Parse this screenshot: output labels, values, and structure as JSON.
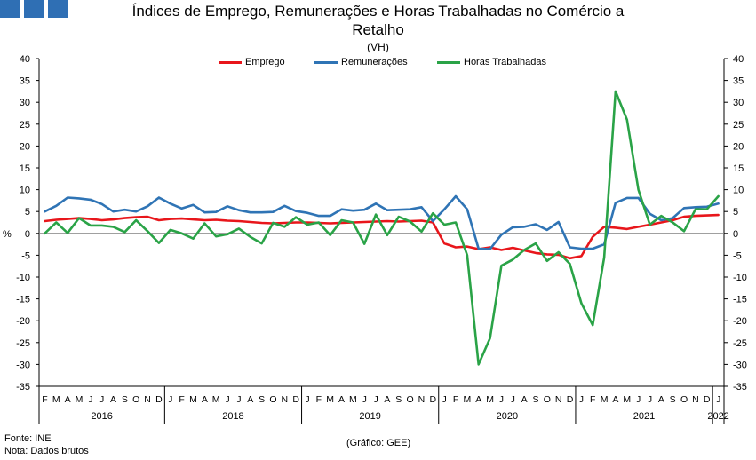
{
  "header": {
    "title_line1": "Índices de Emprego, Remunerações e Horas Trabalhadas no Comércio a",
    "title_line2": "Retalho",
    "subtitle": "(VH)"
  },
  "footer": {
    "source": "Fonte: INE",
    "note": "Nota: Dados brutos",
    "credit": "(Gráfico: GEE)"
  },
  "chart_data": {
    "type": "line",
    "ylabel": "%",
    "ylim": [
      -35,
      40
    ],
    "yticks": [
      40,
      35,
      30,
      25,
      20,
      15,
      10,
      5,
      0,
      -5,
      -10,
      -15,
      -20,
      -25,
      -30,
      -35
    ],
    "legend_position": "top-center",
    "grid": false,
    "month_labels": [
      "F",
      "M",
      "A",
      "M",
      "J",
      "J",
      "A",
      "S",
      "O",
      "N",
      "D",
      "J",
      "F",
      "M",
      "A",
      "M",
      "J",
      "J",
      "A",
      "S",
      "O",
      "N",
      "D",
      "J",
      "F",
      "M",
      "A",
      "M",
      "J",
      "J",
      "A",
      "S",
      "O",
      "N",
      "D",
      "J",
      "F",
      "M",
      "A",
      "M",
      "J",
      "J",
      "A",
      "S",
      "O",
      "N",
      "D",
      "J",
      "F",
      "M",
      "A",
      "M",
      "J",
      "J",
      "A",
      "S",
      "O",
      "N",
      "D",
      "J"
    ],
    "year_labels": [
      {
        "label": "2016",
        "start": 0,
        "end": 10
      },
      {
        "label": "2018",
        "start": 11,
        "end": 22
      },
      {
        "label": "2019",
        "start": 23,
        "end": 34
      },
      {
        "label": "2020",
        "start": 35,
        "end": 46
      },
      {
        "label": "2021",
        "start": 47,
        "end": 58
      },
      {
        "label": "2022",
        "start": 59,
        "end": 59
      }
    ],
    "series": [
      {
        "name": "Emprego",
        "color": "#e8161b",
        "values": [
          2.8,
          3.1,
          3.3,
          3.5,
          3.3,
          3.0,
          3.2,
          3.5,
          3.7,
          3.8,
          3.0,
          3.3,
          3.4,
          3.2,
          3.0,
          3.1,
          2.9,
          2.8,
          2.6,
          2.4,
          2.3,
          2.4,
          2.5,
          2.5,
          2.4,
          2.3,
          2.4,
          2.5,
          2.6,
          2.7,
          2.8,
          2.7,
          2.8,
          2.9,
          2.5,
          -2.3,
          -3.2,
          -3.0,
          -3.6,
          -3.2,
          -3.8,
          -3.3,
          -3.9,
          -4.5,
          -4.8,
          -4.9,
          -5.7,
          -5.2,
          -0.8,
          1.5,
          1.3,
          1.0,
          1.5,
          2.0,
          2.5,
          3.0,
          3.8,
          4.0,
          4.1,
          4.2
        ]
      },
      {
        "name": "Remunerações",
        "color": "#2f74b5",
        "values": [
          5.0,
          6.3,
          8.2,
          8.0,
          7.7,
          6.7,
          5.0,
          5.4,
          5.0,
          6.2,
          8.2,
          6.8,
          5.7,
          6.5,
          4.8,
          4.9,
          6.2,
          5.3,
          4.8,
          4.8,
          4.9,
          6.3,
          5.1,
          4.7,
          4.0,
          4.0,
          5.5,
          5.2,
          5.4,
          6.8,
          5.3,
          5.4,
          5.5,
          6.0,
          2.8,
          5.5,
          8.5,
          5.5,
          -3.5,
          -3.6,
          -0.3,
          1.4,
          1.5,
          2.1,
          0.8,
          2.6,
          -3.2,
          -3.5,
          -3.5,
          -2.5,
          7.0,
          8.1,
          8.1,
          4.5,
          3.0,
          3.5,
          5.8,
          6.0,
          6.1,
          6.8
        ]
      },
      {
        "name": "Horas Trabalhadas",
        "color": "#2aa347",
        "values": [
          0.0,
          2.5,
          0.1,
          3.5,
          1.8,
          1.8,
          1.5,
          0.3,
          3.0,
          0.5,
          -2.2,
          0.8,
          0.0,
          -1.2,
          2.3,
          -0.7,
          -0.2,
          1.1,
          -0.8,
          -2.3,
          2.4,
          1.5,
          3.7,
          2.0,
          2.5,
          -0.4,
          3.0,
          2.5,
          -2.4,
          4.3,
          -0.4,
          3.8,
          2.7,
          0.4,
          4.6,
          2.0,
          2.5,
          -5.0,
          -30.0,
          -24.0,
          -7.4,
          -6.0,
          -3.8,
          -2.3,
          -6.3,
          -4.3,
          -7.0,
          -16.0,
          -21.0,
          -5.5,
          32.5,
          26.0,
          10.0,
          2.0,
          4.0,
          2.5,
          0.5,
          5.5,
          5.5,
          8.5
        ]
      }
    ]
  }
}
